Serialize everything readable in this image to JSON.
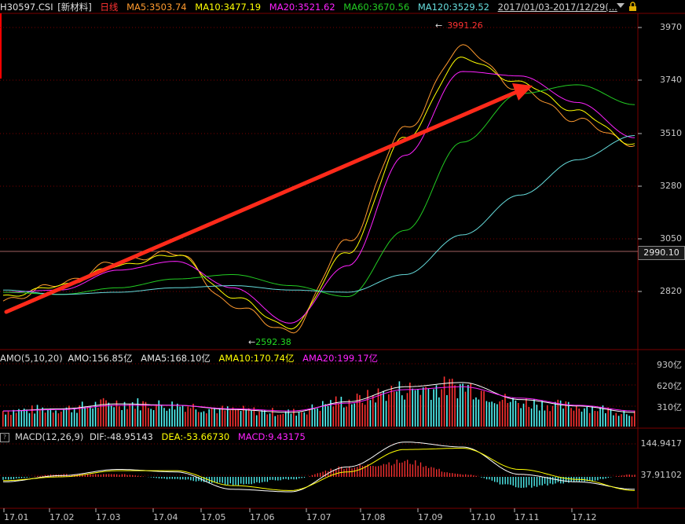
{
  "header": {
    "code": "H30597.CSI",
    "name": "[新材料]",
    "period": "日线",
    "ma5": "MA5:3503.74",
    "ma10": "MA10:3477.19",
    "ma20": "MA20:3521.62",
    "ma60": "MA60:3670.56",
    "ma120": "MA120:3529.52",
    "date_range": "2017/01/03-2017/12/29(..."
  },
  "price_axis": [
    "3970",
    "3740",
    "3510",
    "3280",
    "3050",
    "2820"
  ],
  "current_price": "2990.10",
  "annotations": {
    "high": "3991.26",
    "low": "2592.38"
  },
  "amo": {
    "title": "AMO(5,10,20)",
    "amo": "AMO:156.85亿",
    "ama5": "AMA5:168.10亿",
    "ama10": "AMA10:170.74亿",
    "ama20": "AMA20:199.17亿",
    "axis": [
      "930亿",
      "620亿",
      "310亿"
    ]
  },
  "macd": {
    "title": "MACD(12,26,9)",
    "dif": "DIF:-48.95143",
    "dea": "DEA:-53.66730",
    "macd": "MACD:9.43175",
    "axis": [
      "144.9417",
      "37.91102"
    ]
  },
  "x_axis": [
    "17.01",
    "17.02",
    "17.03",
    "17.04",
    "17.05",
    "17.06",
    "17.07",
    "17.08",
    "17.09",
    "17.10",
    "17.11",
    "17.12"
  ],
  "colors": {
    "ma5": "#ff9a2e",
    "ma10": "#ffff00",
    "ma20": "#ff22ff",
    "ma60": "#22cc22",
    "ma120": "#66dddd",
    "up": "#ff3232",
    "down": "#54fcfc",
    "arrow": "#ff2a1a",
    "grid": "#7a0000"
  },
  "chart_data": [
    {
      "type": "line",
      "title": "",
      "xlabel": "",
      "ylabel": "",
      "categories": [
        "17.01",
        "17.02",
        "17.03",
        "17.04",
        "17.05",
        "17.06",
        "17.07",
        "17.08",
        "17.09",
        "17.10",
        "17.11",
        "17.12"
      ],
      "ylim": [
        2560,
        4080
      ],
      "series": [
        {
          "name": "MA5",
          "values": [
            2780,
            2860,
            2960,
            3000,
            2760,
            2640,
            3050,
            3560,
            3930,
            3740,
            3600,
            3490
          ]
        },
        {
          "name": "MA10",
          "values": [
            2800,
            2850,
            2940,
            2990,
            2800,
            2660,
            3000,
            3520,
            3880,
            3770,
            3640,
            3490
          ]
        },
        {
          "name": "MA20",
          "values": [
            2820,
            2830,
            2920,
            2960,
            2840,
            2680,
            2940,
            3440,
            3820,
            3800,
            3680,
            3520
          ]
        },
        {
          "name": "MA60",
          "values": [
            2820,
            2810,
            2840,
            2880,
            2900,
            2850,
            2800,
            3100,
            3500,
            3720,
            3760,
            3670
          ]
        },
        {
          "name": "MA120",
          "values": [
            2830,
            2810,
            2820,
            2840,
            2850,
            2830,
            2820,
            2900,
            3080,
            3260,
            3420,
            3530
          ]
        }
      ]
    },
    {
      "type": "bar",
      "title": "AMO(5,10,20)",
      "categories": [
        "17.01",
        "17.02",
        "17.03",
        "17.04",
        "17.05",
        "17.06",
        "17.07",
        "17.08",
        "17.09",
        "17.10",
        "17.11",
        "17.12"
      ],
      "ylim": [
        0,
        1050
      ],
      "series": [
        {
          "name": "AMO",
          "values": [
            220,
            250,
            330,
            300,
            230,
            200,
            360,
            520,
            560,
            340,
            280,
            200
          ]
        },
        {
          "name": "AMA5",
          "values": [
            220,
            250,
            320,
            300,
            240,
            200,
            350,
            560,
            620,
            380,
            290,
            200
          ]
        },
        {
          "name": "AMA20",
          "values": [
            220,
            240,
            300,
            300,
            250,
            220,
            330,
            520,
            560,
            400,
            300,
            220
          ]
        }
      ]
    },
    {
      "type": "bar",
      "title": "MACD(12,26,9)",
      "categories": [
        "17.01",
        "17.02",
        "17.03",
        "17.04",
        "17.05",
        "17.06",
        "17.07",
        "17.08",
        "17.09",
        "17.10",
        "17.11",
        "17.12"
      ],
      "ylim": [
        -120,
        180
      ],
      "series": [
        {
          "name": "DIF",
          "values": [
            -20,
            5,
            30,
            20,
            -50,
            -60,
            40,
            140,
            120,
            10,
            -20,
            -50
          ]
        },
        {
          "name": "DEA",
          "values": [
            -15,
            0,
            25,
            25,
            -35,
            -55,
            20,
            110,
            115,
            30,
            -10,
            -55
          ]
        },
        {
          "name": "MACD",
          "values": [
            -10,
            10,
            10,
            -10,
            -30,
            -10,
            40,
            60,
            10,
            -40,
            -20,
            9
          ]
        }
      ]
    }
  ]
}
